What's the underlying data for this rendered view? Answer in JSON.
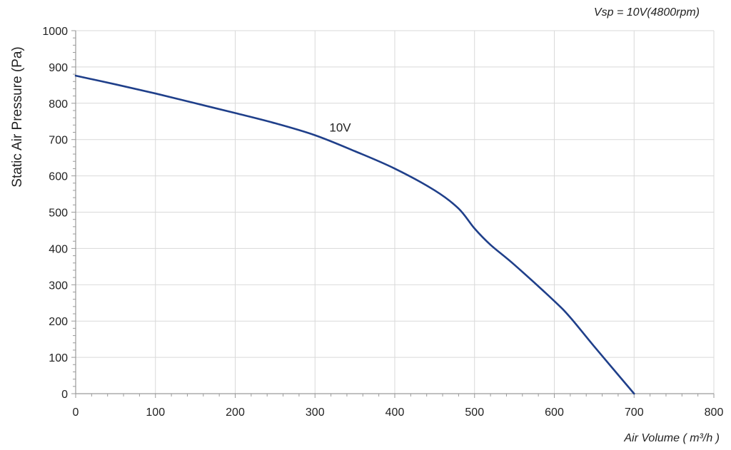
{
  "chart_data": {
    "type": "line",
    "title": "",
    "condition": "Vsp = 10V(4800rpm)",
    "xlabel": "Air Volume ( m³/h )",
    "ylabel": "Static Air Pressure  (Pa)",
    "xlim": [
      0,
      800
    ],
    "ylim": [
      0,
      1000
    ],
    "x_ticks": [
      0,
      100,
      200,
      300,
      400,
      500,
      600,
      700,
      800
    ],
    "y_ticks": [
      0,
      100,
      200,
      300,
      400,
      500,
      600,
      700,
      800,
      900,
      1000
    ],
    "grid": true,
    "colors": {
      "series": "#1f3f8a",
      "grid": "#d9d9d9",
      "axis": "#9a9a9a"
    },
    "series": [
      {
        "name": "10V",
        "label_at": [
          318,
          722
        ],
        "x": [
          0,
          50,
          100,
          150,
          200,
          250,
          300,
          350,
          400,
          450,
          480,
          500,
          520,
          550,
          600,
          620,
          650,
          700
        ],
        "y": [
          876,
          852,
          827,
          800,
          773,
          745,
          712,
          668,
          620,
          560,
          510,
          455,
          410,
          355,
          255,
          210,
          130,
          0
        ]
      }
    ]
  }
}
